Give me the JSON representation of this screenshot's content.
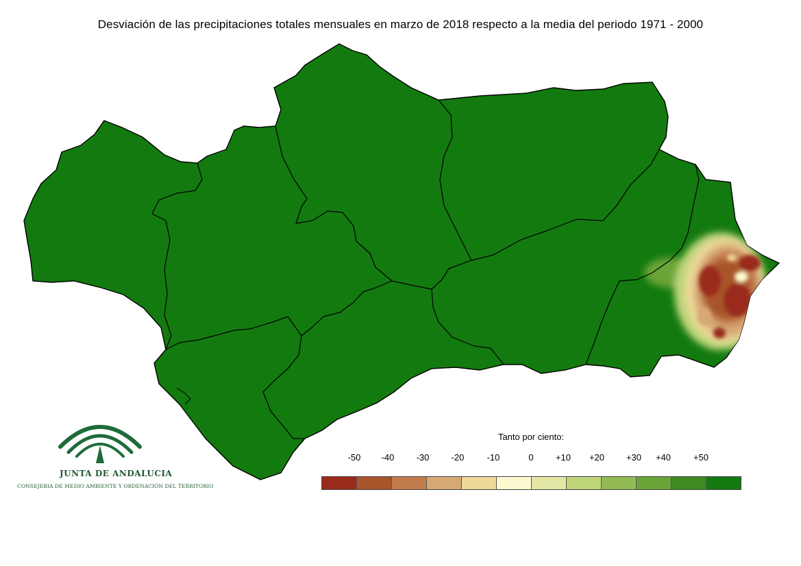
{
  "title": "Desviación de las precipitaciones totales mensuales en marzo de 2018 respecto a la media del periodo 1971 - 2000",
  "map": {
    "region": "Andalucía",
    "base_fill": "#137a0f",
    "border_color": "#000000",
    "anomaly_area": "east-coast"
  },
  "legend": {
    "title": "Tanto por ciento:",
    "labels": [
      "-50",
      "-40",
      "-30",
      "-20",
      "-10",
      "0",
      "+10",
      "+20",
      "+30",
      "+40",
      "+50"
    ],
    "colors": [
      "#992a1c",
      "#a9552b",
      "#c27c4b",
      "#d6a874",
      "#eed99a",
      "#fcf9d0",
      "#e3e7a5",
      "#bed57a",
      "#93bb55",
      "#6aa539",
      "#3f8a21",
      "#137a0f"
    ]
  },
  "logo": {
    "name": "JUNTA DE ANDALUCIA",
    "subtitle": "CONSEJERIA DE MEDIO AMBIENTE Y ORDENACIÓN DEL TERRITORIO",
    "color": "#1f5b33"
  }
}
